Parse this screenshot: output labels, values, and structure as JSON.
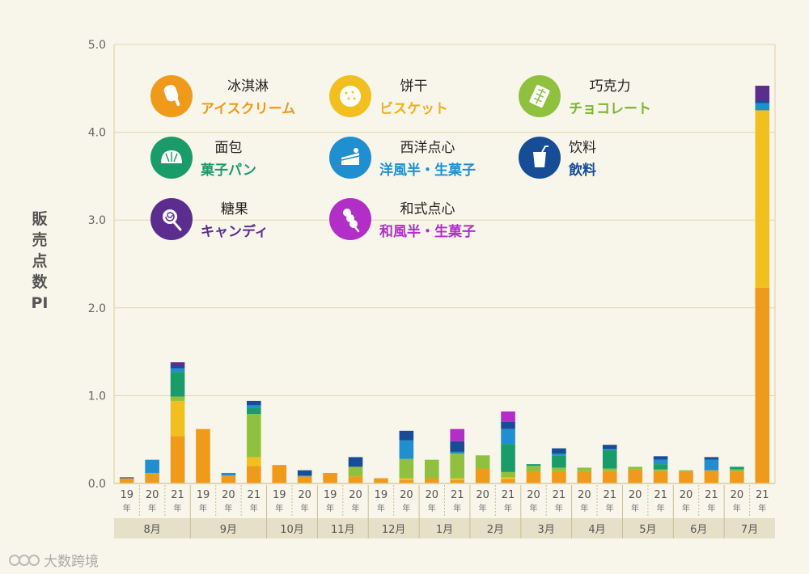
{
  "chart_data": {
    "type": "stacked-bar",
    "title": "",
    "ylabel": "販売点数PI",
    "ylim": [
      0,
      5.0
    ],
    "yticks": [
      "0.0",
      "1.0",
      "2.0",
      "3.0",
      "4.0",
      "5.0"
    ],
    "year_suffix": "年",
    "series": [
      {
        "key": "ice",
        "zh": "冰淇淋",
        "ja": "アイスクリーム",
        "color": "#f09a1b"
      },
      {
        "key": "biscuit",
        "zh": "饼干",
        "ja": "ビスケット",
        "color": "#f2c01e"
      },
      {
        "key": "choco",
        "zh": "巧克力",
        "ja": "チョコレート",
        "color": "#8fc13e"
      },
      {
        "key": "bread",
        "zh": "面包",
        "ja": "菓子パン",
        "color": "#1a9b6a"
      },
      {
        "key": "western",
        "zh": "西洋点心",
        "ja": "洋風半・生菓子",
        "color": "#1f8fd0"
      },
      {
        "key": "drink",
        "zh": "饮料",
        "ja": "飲料",
        "color": "#174d96"
      },
      {
        "key": "candy",
        "zh": "糖果",
        "ja": "キャンディ",
        "color": "#5b2d8e"
      },
      {
        "key": "wagashi",
        "zh": "和式点心",
        "ja": "和風半・生菓子",
        "color": "#b12fc7"
      }
    ],
    "months": [
      {
        "label": "8月",
        "bars": [
          {
            "year": "19",
            "values": {
              "ice": 0.06,
              "drink": 0.01
            }
          },
          {
            "year": "20",
            "values": {
              "ice": 0.12,
              "western": 0.15
            }
          },
          {
            "year": "21",
            "values": {
              "ice": 0.54,
              "biscuit": 0.4,
              "choco": 0.05,
              "bread": 0.28,
              "western": 0.04,
              "drink": 0.03,
              "candy": 0.04
            }
          }
        ]
      },
      {
        "label": "9月",
        "bars": [
          {
            "year": "19",
            "values": {
              "ice": 0.62
            }
          },
          {
            "year": "20",
            "values": {
              "ice": 0.09,
              "western": 0.03
            }
          },
          {
            "year": "21",
            "values": {
              "ice": 0.2,
              "biscuit": 0.1,
              "choco": 0.49,
              "bread": 0.07,
              "western": 0.03,
              "drink": 0.05
            }
          }
        ]
      },
      {
        "label": "10月",
        "bars": [
          {
            "year": "19",
            "values": {
              "ice": 0.21
            }
          },
          {
            "year": "20",
            "values": {
              "ice": 0.08,
              "western": 0.01,
              "drink": 0.06
            }
          }
        ]
      },
      {
        "label": "11月",
        "bars": [
          {
            "year": "19",
            "values": {
              "ice": 0.12
            }
          },
          {
            "year": "20",
            "values": {
              "ice": 0.08,
              "choco": 0.11,
              "drink": 0.11
            }
          }
        ]
      },
      {
        "label": "12月",
        "bars": [
          {
            "year": "19",
            "values": {
              "ice": 0.06
            }
          },
          {
            "year": "20",
            "values": {
              "ice": 0.04,
              "biscuit": 0.02,
              "choco": 0.22,
              "western": 0.21,
              "drink": 0.11
            }
          }
        ]
      },
      {
        "label": "1月",
        "bars": [
          {
            "year": "20",
            "values": {
              "ice": 0.06,
              "choco": 0.21
            }
          },
          {
            "year": "21",
            "values": {
              "ice": 0.04,
              "biscuit": 0.02,
              "choco": 0.28,
              "western": 0.02,
              "drink": 0.12,
              "wagashi": 0.14
            }
          }
        ]
      },
      {
        "label": "2月",
        "bars": [
          {
            "year": "20",
            "values": {
              "ice": 0.17,
              "choco": 0.15
            }
          },
          {
            "year": "21",
            "values": {
              "ice": 0.05,
              "biscuit": 0.02,
              "choco": 0.06,
              "bread": 0.32,
              "western": 0.17,
              "drink": 0.08,
              "wagashi": 0.12
            }
          }
        ]
      },
      {
        "label": "3月",
        "bars": [
          {
            "year": "20",
            "values": {
              "ice": 0.13,
              "choco": 0.07,
              "bread": 0.02
            }
          },
          {
            "year": "21",
            "values": {
              "ice": 0.14,
              "choco": 0.04,
              "bread": 0.14,
              "western": 0.02,
              "drink": 0.06
            }
          }
        ]
      },
      {
        "label": "4月",
        "bars": [
          {
            "year": "20",
            "values": {
              "ice": 0.14,
              "choco": 0.04
            }
          },
          {
            "year": "21",
            "values": {
              "ice": 0.14,
              "choco": 0.03,
              "bread": 0.21,
              "western": 0.01,
              "drink": 0.05
            }
          }
        ]
      },
      {
        "label": "5月",
        "bars": [
          {
            "year": "20",
            "values": {
              "ice": 0.16,
              "choco": 0.03
            }
          },
          {
            "year": "21",
            "values": {
              "ice": 0.14,
              "choco": 0.02,
              "bread": 0.06,
              "western": 0.05,
              "drink": 0.04
            }
          }
        ]
      },
      {
        "label": "6月",
        "bars": [
          {
            "year": "20",
            "values": {
              "ice": 0.13,
              "choco": 0.02
            }
          },
          {
            "year": "21",
            "values": {
              "ice": 0.15,
              "western": 0.12,
              "drink": 0.03
            }
          }
        ]
      },
      {
        "label": "7月",
        "bars": [
          {
            "year": "20",
            "values": {
              "ice": 0.13,
              "choco": 0.03,
              "bread": 0.03
            }
          },
          {
            "year": "21",
            "values": {
              "ice": 2.23,
              "biscuit": 2.02,
              "western": 0.08,
              "drink": 0.03,
              "candy": 0.17
            }
          }
        ]
      }
    ]
  },
  "watermark": "大数跨境"
}
